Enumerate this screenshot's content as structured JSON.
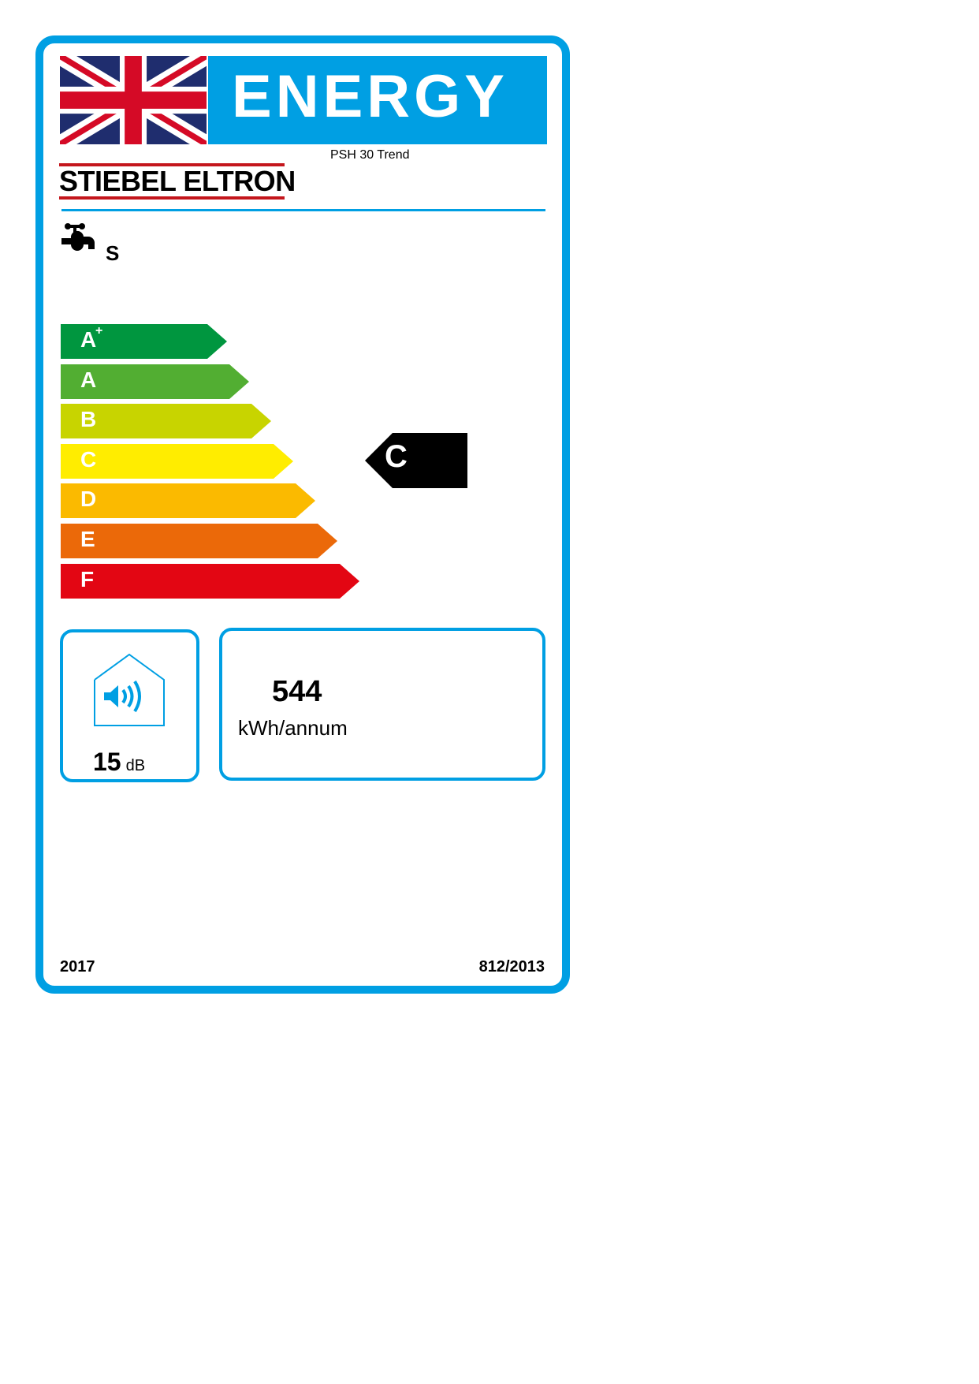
{
  "header": {
    "title": "ENERGY",
    "model": "PSH 30 Trend",
    "brand": "STIEBEL ELTRON",
    "load_profile": "S"
  },
  "scale": {
    "classes": [
      {
        "label": "A",
        "sup": "+",
        "color": "#00963f"
      },
      {
        "label": "A",
        "sup": "",
        "color": "#52ae32"
      },
      {
        "label": "B",
        "sup": "",
        "color": "#c8d400"
      },
      {
        "label": "C",
        "sup": "",
        "color": "#ffed00"
      },
      {
        "label": "D",
        "sup": "",
        "color": "#fbba00"
      },
      {
        "label": "E",
        "sup": "",
        "color": "#eb6909"
      },
      {
        "label": "F",
        "sup": "",
        "color": "#e30613"
      }
    ],
    "rating": "C",
    "rating_color": "#000000"
  },
  "noise": {
    "value": "15",
    "unit": "dB",
    "icon": "sound-house-icon"
  },
  "consumption": {
    "value": "544",
    "unit": "kWh/annum"
  },
  "footer": {
    "year": "2017",
    "regulation": "812/2013"
  },
  "colors": {
    "accent": "#009fe3",
    "brand_red": "#c4161c"
  }
}
